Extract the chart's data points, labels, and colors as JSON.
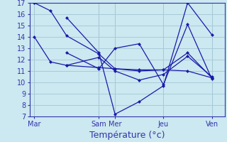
{
  "background_color": "#cce8f0",
  "grid_color": "#a8ccd8",
  "line_color": "#1a1aaa",
  "xlabel": "Température (°c)",
  "x_tick_labels": [
    "Mar",
    "Sam",
    "Mer",
    "Jeu",
    "Ven"
  ],
  "x_tick_positions": [
    0,
    4,
    5,
    8,
    11
  ],
  "xlim": [
    -0.3,
    11.8
  ],
  "ylim": [
    7,
    17
  ],
  "yticks": [
    7,
    8,
    9,
    10,
    11,
    12,
    13,
    14,
    15,
    16,
    17
  ],
  "lines": [
    {
      "x": [
        0,
        1,
        2,
        4,
        5,
        6.5,
        8,
        9.5,
        11
      ],
      "y": [
        17.0,
        16.3,
        14.1,
        12.5,
        11.2,
        11.1,
        11.1,
        11.0,
        10.4
      ]
    },
    {
      "x": [
        0,
        1,
        2,
        4,
        5,
        6.5,
        8,
        9.5,
        11
      ],
      "y": [
        14.0,
        11.8,
        11.5,
        12.2,
        11.0,
        10.2,
        10.7,
        12.3,
        10.5
      ]
    },
    {
      "x": [
        2,
        4,
        5,
        6.5,
        8,
        9.5,
        11
      ],
      "y": [
        15.7,
        12.6,
        7.2,
        8.3,
        9.7,
        17.0,
        14.2
      ]
    },
    {
      "x": [
        2,
        4,
        5,
        6.5,
        8,
        9.5,
        11
      ],
      "y": [
        12.6,
        11.2,
        13.0,
        13.4,
        9.8,
        15.1,
        10.3
      ]
    },
    {
      "x": [
        2,
        4,
        5,
        6.5,
        8,
        9.5,
        11
      ],
      "y": [
        11.5,
        11.3,
        11.2,
        11.0,
        11.1,
        12.6,
        10.4
      ]
    }
  ],
  "vline_positions": [
    0,
    4,
    5,
    8,
    11
  ],
  "tick_fontsize": 7,
  "xlabel_fontsize": 9,
  "tick_color": "#3333aa",
  "spine_color": "#3333aa"
}
